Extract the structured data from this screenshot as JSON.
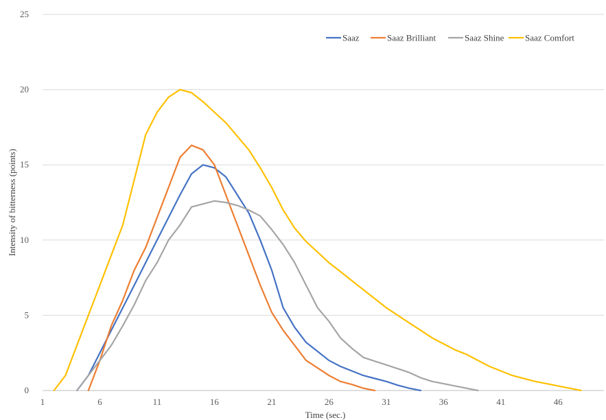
{
  "chart_data": {
    "type": "line",
    "title": "",
    "xlabel": "Time (sec.)",
    "ylabel": "Intensity of bitterness (points)",
    "xlim": [
      1,
      50
    ],
    "ylim": [
      0,
      25
    ],
    "x_ticks": [
      1,
      6,
      11,
      16,
      21,
      26,
      31,
      36,
      41,
      46
    ],
    "y_ticks": [
      0,
      5,
      10,
      15,
      20,
      25
    ],
    "grid": true,
    "legend_position": "top-right",
    "series": [
      {
        "name": "Saaz",
        "color": "#4472c4",
        "points": [
          [
            4,
            0
          ],
          [
            5,
            1
          ],
          [
            6,
            2.5
          ],
          [
            7,
            4
          ],
          [
            8,
            5.5
          ],
          [
            9,
            7
          ],
          [
            10,
            8.5
          ],
          [
            11,
            10
          ],
          [
            12,
            11.5
          ],
          [
            13,
            13
          ],
          [
            14,
            14.4
          ],
          [
            15,
            15
          ],
          [
            16,
            14.8
          ],
          [
            17,
            14.2
          ],
          [
            18,
            13
          ],
          [
            19,
            11.8
          ],
          [
            20,
            10
          ],
          [
            21,
            8
          ],
          [
            22,
            5.5
          ],
          [
            23,
            4.2
          ],
          [
            24,
            3.2
          ],
          [
            25,
            2.6
          ],
          [
            26,
            2
          ],
          [
            27,
            1.6
          ],
          [
            28,
            1.3
          ],
          [
            29,
            1
          ],
          [
            30,
            0.8
          ],
          [
            31,
            0.6
          ],
          [
            32,
            0.35
          ],
          [
            33,
            0.15
          ],
          [
            34,
            0
          ]
        ]
      },
      {
        "name": "Saaz Brilliant",
        "color": "#ed7d31",
        "points": [
          [
            5,
            0
          ],
          [
            6,
            2
          ],
          [
            7,
            4.3
          ],
          [
            8,
            6
          ],
          [
            9,
            8
          ],
          [
            10,
            9.5
          ],
          [
            11,
            11.5
          ],
          [
            12,
            13.5
          ],
          [
            13,
            15.5
          ],
          [
            14,
            16.3
          ],
          [
            15,
            16
          ],
          [
            16,
            15
          ],
          [
            17,
            13
          ],
          [
            18,
            11
          ],
          [
            19,
            9
          ],
          [
            20,
            7
          ],
          [
            21,
            5.2
          ],
          [
            22,
            4
          ],
          [
            23,
            3
          ],
          [
            24,
            2
          ],
          [
            25,
            1.5
          ],
          [
            26,
            1
          ],
          [
            27,
            0.6
          ],
          [
            28,
            0.4
          ],
          [
            29,
            0.15
          ],
          [
            30,
            0
          ]
        ]
      },
      {
        "name": "Saaz Shine",
        "color": "#a5a5a5",
        "points": [
          [
            4,
            0
          ],
          [
            5,
            1
          ],
          [
            6,
            2
          ],
          [
            7,
            3
          ],
          [
            8,
            4.3
          ],
          [
            9,
            5.7
          ],
          [
            10,
            7.3
          ],
          [
            11,
            8.5
          ],
          [
            12,
            10
          ],
          [
            13,
            11
          ],
          [
            14,
            12.2
          ],
          [
            15,
            12.4
          ],
          [
            16,
            12.6
          ],
          [
            17,
            12.5
          ],
          [
            18,
            12.3
          ],
          [
            19,
            12
          ],
          [
            20,
            11.6
          ],
          [
            21,
            10.7
          ],
          [
            22,
            9.7
          ],
          [
            23,
            8.5
          ],
          [
            24,
            7
          ],
          [
            25,
            5.5
          ],
          [
            26,
            4.6
          ],
          [
            27,
            3.5
          ],
          [
            28,
            2.8
          ],
          [
            29,
            2.2
          ],
          [
            30,
            1.95
          ],
          [
            31,
            1.7
          ],
          [
            32,
            1.45
          ],
          [
            33,
            1.2
          ],
          [
            34,
            0.85
          ],
          [
            35,
            0.6
          ],
          [
            36,
            0.45
          ],
          [
            37,
            0.3
          ],
          [
            38,
            0.15
          ],
          [
            39,
            0
          ]
        ]
      },
      {
        "name": "Saaz Comfort",
        "color": "#ffc000",
        "points": [
          [
            2,
            0
          ],
          [
            3,
            1
          ],
          [
            4,
            3
          ],
          [
            5,
            5
          ],
          [
            6,
            7
          ],
          [
            7,
            9
          ],
          [
            8,
            11
          ],
          [
            9,
            14
          ],
          [
            10,
            17
          ],
          [
            11,
            18.5
          ],
          [
            12,
            19.5
          ],
          [
            13,
            20
          ],
          [
            14,
            19.8
          ],
          [
            15,
            19.2
          ],
          [
            16,
            18.5
          ],
          [
            17,
            17.8
          ],
          [
            18,
            16.9
          ],
          [
            19,
            16
          ],
          [
            20,
            14.8
          ],
          [
            21,
            13.5
          ],
          [
            22,
            12
          ],
          [
            23,
            10.8
          ],
          [
            24,
            9.9
          ],
          [
            25,
            9.2
          ],
          [
            26,
            8.5
          ],
          [
            27,
            7.9
          ],
          [
            28,
            7.3
          ],
          [
            29,
            6.7
          ],
          [
            30,
            6.1
          ],
          [
            31,
            5.5
          ],
          [
            32,
            5
          ],
          [
            33,
            4.5
          ],
          [
            34,
            4
          ],
          [
            35,
            3.5
          ],
          [
            36,
            3.1
          ],
          [
            37,
            2.7
          ],
          [
            38,
            2.4
          ],
          [
            39,
            2
          ],
          [
            40,
            1.6
          ],
          [
            41,
            1.3
          ],
          [
            42,
            1
          ],
          [
            43,
            0.8
          ],
          [
            44,
            0.6
          ],
          [
            45,
            0.45
          ],
          [
            46,
            0.3
          ],
          [
            47,
            0.15
          ],
          [
            48,
            0
          ]
        ]
      }
    ]
  }
}
